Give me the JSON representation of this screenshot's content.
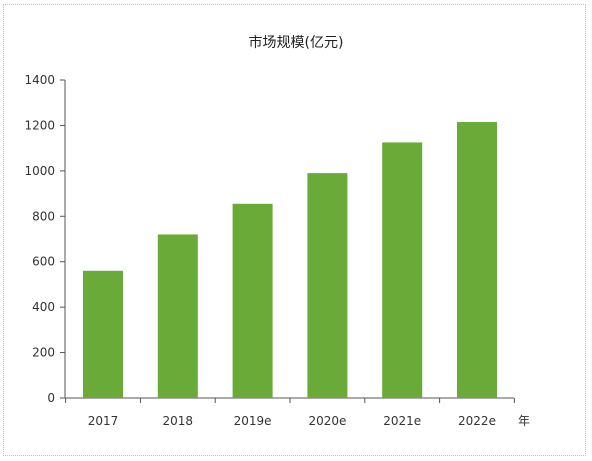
{
  "chart_data": {
    "type": "bar",
    "title": "市场规模(亿元)",
    "xlabel": "年",
    "ylabel": "",
    "categories": [
      "2017",
      "2018",
      "2019e",
      "2020e",
      "2021e",
      "2022e"
    ],
    "values": [
      560,
      720,
      855,
      990,
      1125,
      1215
    ],
    "ylim": [
      0,
      1400
    ],
    "yticks": [
      0,
      200,
      400,
      600,
      800,
      1000,
      1200,
      1400
    ],
    "grid": false,
    "legend": "none",
    "colors": {
      "bar": "#6aaa38",
      "axis": "#555555"
    }
  }
}
